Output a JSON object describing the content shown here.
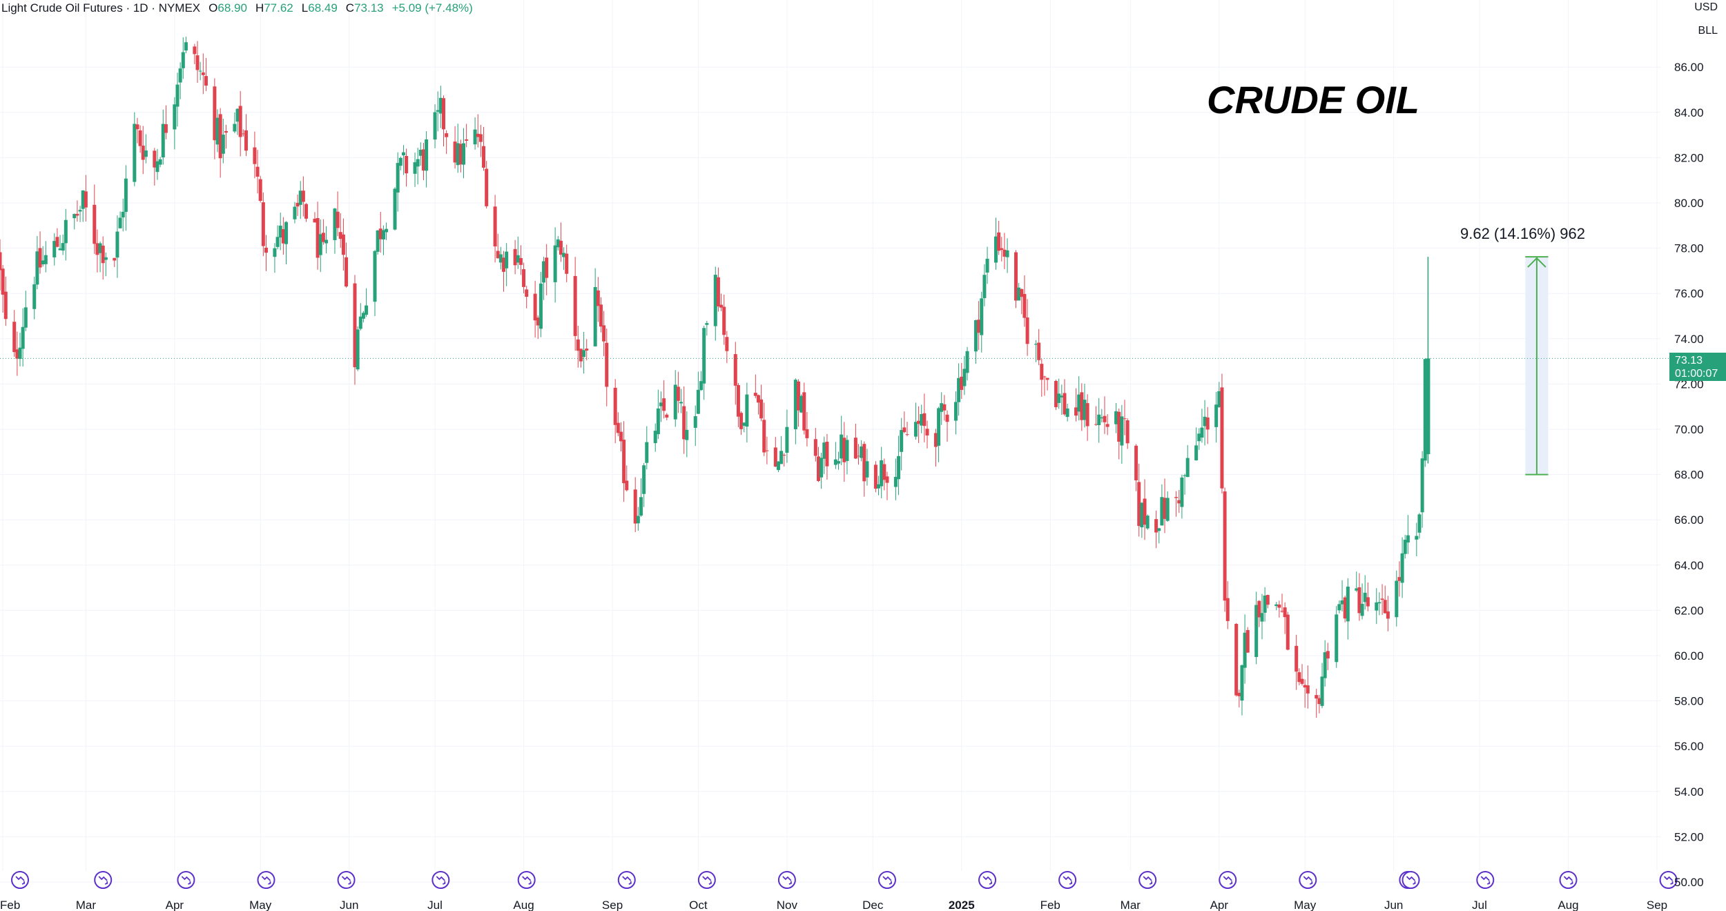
{
  "header": {
    "symbol": "Light Crude Oil Futures · 1D · NYMEX",
    "open_label": "O",
    "open_value": "68.90",
    "high_label": "H",
    "high_value": "77.62",
    "low_label": "L",
    "low_value": "68.49",
    "close_label": "C",
    "close_value": "73.13",
    "change": "+5.09 (+7.48%)"
  },
  "price_scale": {
    "currency": "USD",
    "unit": "BLL"
  },
  "overlay_title": "CRUDE OIL",
  "measure_label": "9.62 (14.16%) 962",
  "current_price": {
    "value": "73.13",
    "countdown": "01:00:07"
  },
  "colors": {
    "up": "#26a17a",
    "down": "#e0434d",
    "measure": "#4caf50",
    "measure_fill": "#e8effb",
    "event": "#5b2fc9"
  },
  "chart_data": {
    "type": "candlestick",
    "title": "",
    "ylim": [
      49.5,
      88.5
    ],
    "y_ticks": [
      "50.00",
      "52.00",
      "54.00",
      "56.00",
      "58.00",
      "60.00",
      "62.00",
      "64.00",
      "66.00",
      "68.00",
      "70.00",
      "72.00",
      "74.00",
      "76.00",
      "78.00",
      "80.00",
      "82.00",
      "84.00",
      "86.00"
    ],
    "x_ticks": [
      "Feb",
      "Mar",
      "Apr",
      "May",
      "Jun",
      "Jul",
      "Aug",
      "Sep",
      "Oct",
      "Nov",
      "Dec",
      "2025",
      "Feb",
      "Mar",
      "Apr",
      "May",
      "Jun",
      "Jul",
      "Aug",
      "Sep"
    ],
    "x_tick_dates": [
      "2024-02-01",
      "2024-03-01",
      "2024-04-01",
      "2024-05-01",
      "2024-06-01",
      "2024-07-01",
      "2024-08-01",
      "2024-09-01",
      "2024-10-01",
      "2024-11-01",
      "2024-12-01",
      "2025-01-01",
      "2025-02-01",
      "2025-03-01",
      "2025-04-01",
      "2025-05-01",
      "2025-06-01",
      "2025-07-01",
      "2025-08-01",
      "2025-09-01"
    ],
    "x_range": [
      "2024-01-31",
      "2025-09-01"
    ],
    "price_anchors": [
      [
        "2024-01-31",
        77.9
      ],
      [
        "2024-02-05",
        72.3
      ],
      [
        "2024-02-12",
        76.8
      ],
      [
        "2024-02-20",
        78.0
      ],
      [
        "2024-03-01",
        79.9
      ],
      [
        "2024-03-06",
        78.2
      ],
      [
        "2024-03-12",
        77.6
      ],
      [
        "2024-03-19",
        83.2
      ],
      [
        "2024-03-26",
        81.6
      ],
      [
        "2024-04-02",
        85.0
      ],
      [
        "2024-04-05",
        87.0
      ],
      [
        "2024-04-12",
        85.5
      ],
      [
        "2024-04-18",
        82.5
      ],
      [
        "2024-04-24",
        83.5
      ],
      [
        "2024-04-30",
        82.0
      ],
      [
        "2024-05-03",
        78.5
      ],
      [
        "2024-05-10",
        78.5
      ],
      [
        "2024-05-17",
        80.0
      ],
      [
        "2024-05-24",
        77.5
      ],
      [
        "2024-05-29",
        79.5
      ],
      [
        "2024-06-04",
        73.5
      ],
      [
        "2024-06-07",
        75.5
      ],
      [
        "2024-06-12",
        78.5
      ],
      [
        "2024-06-20",
        81.5
      ],
      [
        "2024-06-28",
        82.0
      ],
      [
        "2024-07-04",
        83.9
      ],
      [
        "2024-07-10",
        82.0
      ],
      [
        "2024-07-17",
        83.0
      ],
      [
        "2024-07-24",
        77.5
      ],
      [
        "2024-07-31",
        78.0
      ],
      [
        "2024-08-05",
        73.5
      ],
      [
        "2024-08-09",
        76.8
      ],
      [
        "2024-08-15",
        78.2
      ],
      [
        "2024-08-22",
        73.0
      ],
      [
        "2024-08-27",
        75.5
      ],
      [
        "2024-09-04",
        69.2
      ],
      [
        "2024-09-10",
        66.2
      ],
      [
        "2024-09-16",
        70.0
      ],
      [
        "2024-09-24",
        71.5
      ],
      [
        "2024-09-30",
        68.5
      ],
      [
        "2024-10-04",
        74.4
      ],
      [
        "2024-10-08",
        77.0
      ],
      [
        "2024-10-16",
        70.5
      ],
      [
        "2024-10-22",
        72.0
      ],
      [
        "2024-10-28",
        67.4
      ],
      [
        "2024-11-05",
        71.9
      ],
      [
        "2024-11-12",
        68.1
      ],
      [
        "2024-11-18",
        69.2
      ],
      [
        "2024-11-25",
        68.9
      ],
      [
        "2024-12-02",
        68.1
      ],
      [
        "2024-12-09",
        68.4
      ],
      [
        "2024-12-16",
        70.3
      ],
      [
        "2024-12-23",
        69.7
      ],
      [
        "2024-12-31",
        71.7
      ],
      [
        "2025-01-07",
        74.3
      ],
      [
        "2025-01-13",
        78.8
      ],
      [
        "2025-01-17",
        77.9
      ],
      [
        "2025-01-24",
        74.7
      ],
      [
        "2025-01-31",
        72.5
      ],
      [
        "2025-02-07",
        71.0
      ],
      [
        "2025-02-14",
        70.7
      ],
      [
        "2025-02-21",
        70.4
      ],
      [
        "2025-02-28",
        69.8
      ],
      [
        "2025-03-05",
        66.3
      ],
      [
        "2025-03-10",
        66.0
      ],
      [
        "2025-03-18",
        66.9
      ],
      [
        "2025-03-26",
        69.6
      ],
      [
        "2025-04-02",
        71.7
      ],
      [
        "2025-04-04",
        61.9
      ],
      [
        "2025-04-08",
        57.8
      ],
      [
        "2025-04-10",
        60.1
      ],
      [
        "2025-04-16",
        62.4
      ],
      [
        "2025-04-23",
        62.3
      ],
      [
        "2025-04-30",
        58.3
      ],
      [
        "2025-05-05",
        57.1
      ],
      [
        "2025-05-12",
        61.9
      ],
      [
        "2025-05-20",
        62.6
      ],
      [
        "2025-05-28",
        61.8
      ],
      [
        "2025-06-02",
        62.5
      ],
      [
        "2025-06-06",
        64.6
      ],
      [
        "2025-06-10",
        64.9
      ],
      [
        "2025-06-12",
        68.0
      ],
      [
        "2025-06-13",
        73.13
      ]
    ],
    "last_candle": {
      "date": "2025-06-13",
      "open": 68.9,
      "high": 77.62,
      "low": 68.49,
      "close": 73.13
    },
    "measure": {
      "from": 68.0,
      "to": 77.62,
      "start": "2025-07-17",
      "end": "2025-07-25",
      "text": "9.62 (14.16%) 962"
    },
    "event_markers": [
      "2024-02-07",
      "2024-03-07",
      "2024-04-05",
      "2024-05-03",
      "2024-05-31",
      "2024-07-03",
      "2024-08-02",
      "2024-09-06",
      "2024-10-04",
      "2024-11-01",
      "2024-12-06",
      "2025-01-10",
      "2025-02-07",
      "2025-03-07",
      "2025-04-04",
      "2025-05-02",
      "2025-06-06",
      "2025-06-07",
      "2025-07-03",
      "2025-08-01",
      "2025-09-05"
    ]
  }
}
